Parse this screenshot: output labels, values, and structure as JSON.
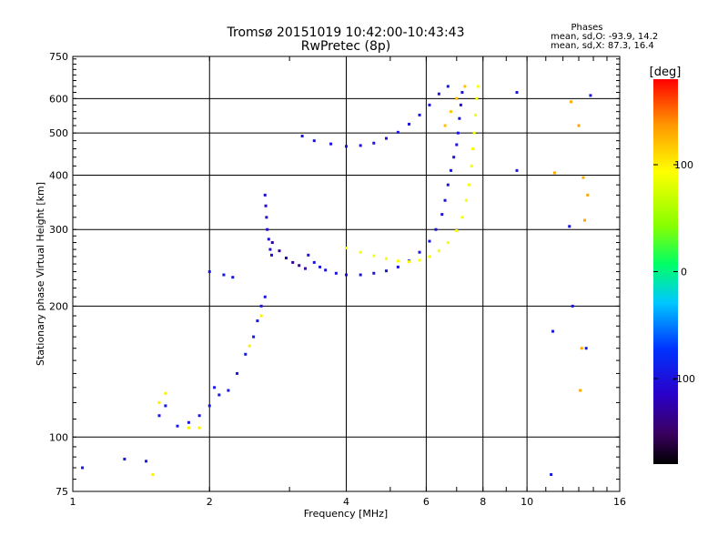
{
  "chart_data": {
    "type": "scatter",
    "title": "Tromsø 20151019 10:42:00-10:43:43",
    "subtitle": "RwPretec (8p)",
    "stats": {
      "heading": "Phases",
      "line1": "mean, sd,O: -93.9, 14.2",
      "line2": "mean, sd,X:  87.3, 16.4"
    },
    "xlabel": "Frequency [MHz]",
    "ylabel": "Stationary phase Virtual Height [km]",
    "x_scale": "log",
    "y_scale": "log",
    "xlim": [
      1,
      16
    ],
    "ylim": [
      75,
      750
    ],
    "xticks": [
      1,
      2,
      4,
      6,
      8,
      10,
      16
    ],
    "yticks": [
      75,
      100,
      200,
      300,
      400,
      500,
      600,
      750
    ],
    "grid": true,
    "colorbar": {
      "label": "[deg]",
      "range": [
        -180,
        180
      ],
      "ticks": [
        100,
        0,
        -100
      ],
      "colormap": "rainbow (black-purple-blue-cyan-green-yellow-red)"
    },
    "series": [
      {
        "comment": "F-region O-mode echoes (blue, ~-100 deg)",
        "phase": -100,
        "points": [
          [
            3.3,
            262
          ],
          [
            3.4,
            252
          ],
          [
            3.5,
            246
          ],
          [
            3.6,
            242
          ],
          [
            3.8,
            238
          ],
          [
            4.0,
            236
          ],
          [
            4.3,
            236
          ],
          [
            4.6,
            238
          ],
          [
            4.9,
            241
          ],
          [
            5.2,
            246
          ],
          [
            5.5,
            254
          ],
          [
            5.8,
            266
          ],
          [
            6.1,
            282
          ],
          [
            6.3,
            300
          ],
          [
            6.5,
            325
          ],
          [
            6.6,
            350
          ],
          [
            6.7,
            380
          ],
          [
            6.8,
            410
          ],
          [
            6.9,
            440
          ],
          [
            7.0,
            470
          ],
          [
            7.05,
            500
          ],
          [
            7.1,
            540
          ],
          [
            7.15,
            580
          ],
          [
            7.2,
            620
          ]
        ]
      },
      {
        "comment": "F-region O-mode cusp low-frequency part (purple)",
        "phase": -130,
        "points": [
          [
            2.75,
            280
          ],
          [
            2.85,
            268
          ],
          [
            2.95,
            258
          ],
          [
            3.05,
            252
          ],
          [
            3.15,
            248
          ],
          [
            3.25,
            244
          ]
        ]
      },
      {
        "comment": "Vertical trace near 2.7 MHz",
        "phase": -105,
        "points": [
          [
            2.65,
            360
          ],
          [
            2.66,
            340
          ],
          [
            2.67,
            320
          ],
          [
            2.68,
            300
          ],
          [
            2.7,
            285
          ],
          [
            2.72,
            270
          ],
          [
            2.74,
            262
          ]
        ]
      },
      {
        "comment": "Upper branch (multi-hop) blue",
        "phase": -100,
        "points": [
          [
            3.2,
            492
          ],
          [
            3.4,
            480
          ],
          [
            3.7,
            472
          ],
          [
            4.0,
            466
          ],
          [
            4.3,
            468
          ],
          [
            4.6,
            474
          ],
          [
            4.9,
            486
          ],
          [
            5.2,
            502
          ],
          [
            5.5,
            524
          ],
          [
            5.8,
            550
          ],
          [
            6.1,
            580
          ],
          [
            6.4,
            615
          ],
          [
            6.7,
            640
          ]
        ]
      },
      {
        "comment": "F-region X-mode echoes (yellow, ~+90 deg)",
        "phase": 90,
        "points": [
          [
            4.0,
            272
          ],
          [
            4.3,
            266
          ],
          [
            4.6,
            261
          ],
          [
            4.9,
            257
          ],
          [
            5.2,
            254
          ],
          [
            5.5,
            253
          ],
          [
            5.8,
            255
          ],
          [
            6.1,
            260
          ],
          [
            6.4,
            268
          ],
          [
            6.7,
            280
          ],
          [
            7.0,
            298
          ],
          [
            7.2,
            320
          ],
          [
            7.35,
            350
          ],
          [
            7.45,
            380
          ],
          [
            7.55,
            420
          ],
          [
            7.6,
            460
          ],
          [
            7.65,
            500
          ],
          [
            7.7,
            550
          ],
          [
            7.75,
            600
          ],
          [
            7.8,
            640
          ]
        ]
      },
      {
        "comment": "X-mode low part (orange)",
        "phase": 120,
        "points": [
          [
            6.6,
            520
          ],
          [
            6.8,
            560
          ],
          [
            7.0,
            600
          ],
          [
            7.3,
            640
          ]
        ]
      },
      {
        "comment": "E/low-altitude echoes (blue)",
        "phase": -95,
        "points": [
          [
            1.05,
            85
          ],
          [
            1.3,
            89
          ],
          [
            1.45,
            88
          ],
          [
            1.55,
            112
          ],
          [
            1.6,
            118
          ],
          [
            1.7,
            106
          ],
          [
            1.8,
            108
          ],
          [
            1.9,
            112
          ],
          [
            2.0,
            118
          ],
          [
            2.05,
            130
          ],
          [
            2.1,
            125
          ],
          [
            2.2,
            128
          ],
          [
            2.3,
            140
          ],
          [
            2.4,
            155
          ],
          [
            2.5,
            170
          ],
          [
            2.55,
            185
          ],
          [
            2.6,
            200
          ],
          [
            2.65,
            210
          ],
          [
            2.0,
            240
          ],
          [
            2.15,
            236
          ],
          [
            2.25,
            233
          ]
        ]
      },
      {
        "comment": "Scattered X echoes at low freq (yellow/orange)",
        "phase": 100,
        "points": [
          [
            1.5,
            82
          ],
          [
            1.6,
            126
          ],
          [
            1.55,
            120
          ],
          [
            1.8,
            105
          ],
          [
            1.9,
            105
          ],
          [
            2.45,
            162
          ],
          [
            2.6,
            190
          ]
        ]
      },
      {
        "comment": "Sparse high-frequency points",
        "phase": 130,
        "points": [
          [
            11.5,
            405
          ],
          [
            12.5,
            590
          ],
          [
            13.0,
            520
          ],
          [
            13.3,
            395
          ],
          [
            13.4,
            315
          ],
          [
            13.6,
            360
          ],
          [
            13.2,
            160
          ],
          [
            13.1,
            128
          ]
        ]
      },
      {
        "comment": "Sparse high-frequency points (blue)",
        "phase": -95,
        "points": [
          [
            9.5,
            620
          ],
          [
            9.5,
            410
          ],
          [
            11.3,
            82
          ],
          [
            12.6,
            200
          ],
          [
            12.4,
            305
          ],
          [
            13.8,
            610
          ],
          [
            13.5,
            160
          ],
          [
            11.4,
            175
          ]
        ]
      }
    ]
  }
}
